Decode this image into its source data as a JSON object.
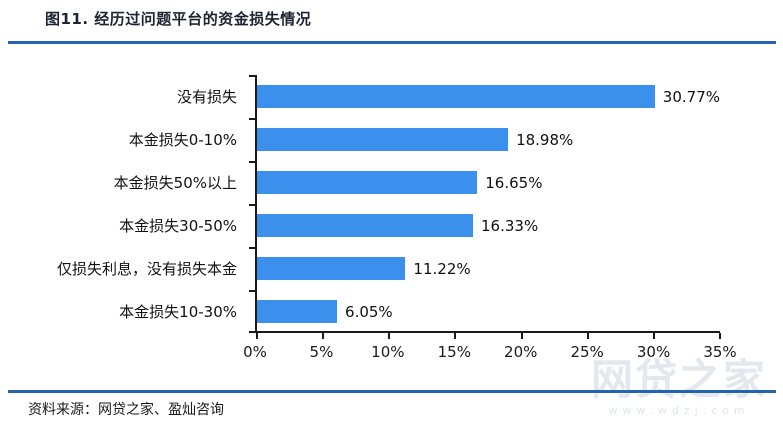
{
  "title": "图11. 经历过问题平台的资金损失情况",
  "source": "资料来源：网贷之家、盈灿咨询",
  "watermark": {
    "brand": "网贷之家",
    "url": "www.wdzj.com"
  },
  "colors": {
    "bar": "#3B90EE",
    "divider": "#2463AE",
    "axis": "#1a1a1a",
    "title_text": "#1d2430",
    "watermark_text": "#e3e8ee"
  },
  "chart_data": {
    "type": "bar",
    "orientation": "horizontal",
    "title": "图11. 经历过问题平台的资金损失情况",
    "categories": [
      "没有损失",
      "本金损失0-10%",
      "本金损失50%以上",
      "本金损失30-50%",
      "仅损失利息，没有损失本金",
      "本金损失10-30%"
    ],
    "values": [
      30.77,
      18.98,
      16.65,
      16.33,
      11.22,
      6.05
    ],
    "value_labels": [
      "30.77%",
      "18.98%",
      "16.65%",
      "16.33%",
      "11.22%",
      "6.05%"
    ],
    "x_ticks": [
      "0%",
      "5%",
      "10%",
      "15%",
      "20%",
      "25%",
      "30%",
      "35%"
    ],
    "xlim": [
      0,
      35
    ],
    "xlabel": "",
    "ylabel": "",
    "grid": false,
    "legend": "none",
    "bar_color": "#3B90EE"
  }
}
